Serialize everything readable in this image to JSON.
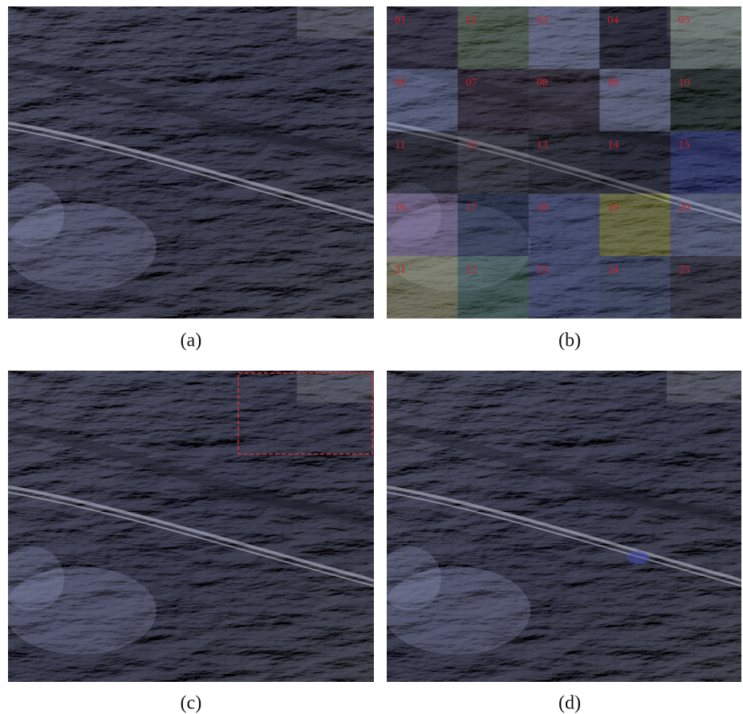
{
  "panels": [
    {
      "label": "(a)"
    },
    {
      "label": "(b)"
    },
    {
      "label": "(c)"
    },
    {
      "label": "(d)"
    }
  ],
  "tiles": [
    "01",
    "02",
    "03",
    "04",
    "05",
    "06",
    "07",
    "08",
    "09",
    "10",
    "11",
    "12",
    "13",
    "14",
    "15",
    "16",
    "17",
    "18",
    "19",
    "20",
    "21",
    "22",
    "23",
    "24",
    "25"
  ]
}
